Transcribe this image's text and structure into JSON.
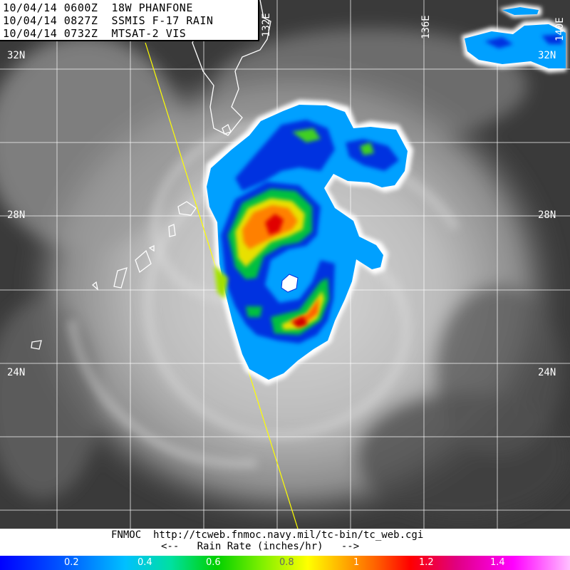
{
  "header": {
    "line1": "10/04/14 0600Z  18W PHANFONE",
    "line2": "10/04/14 0827Z  SSMIS F-17 RAIN",
    "line3": "10/04/14 0732Z  MTSAT-2 VIS"
  },
  "grid": {
    "lat_labels": [
      "32N",
      "28N",
      "24N"
    ],
    "lon_labels": [
      "132E",
      "136E",
      "140E"
    ]
  },
  "footer": {
    "source_line": "FNMOC  http://tcweb.fnmoc.navy.mil/tc-bin/tc_web.cgi",
    "legend_line": "<--   Rain Rate (inches/hr)   -->"
  },
  "colorbar": {
    "ticks": [
      "0.2",
      "0.4",
      "0.6",
      "0.8",
      "1",
      "1.2",
      "1.4"
    ],
    "colors": [
      "#0000ff",
      "#0080ff",
      "#00c0ff",
      "#00e0c0",
      "#00d000",
      "#c0ff00",
      "#ffff00",
      "#ffc000",
      "#ff7000",
      "#ff0000",
      "#e00060",
      "#ff00ff",
      "#ffb0ff"
    ]
  }
}
